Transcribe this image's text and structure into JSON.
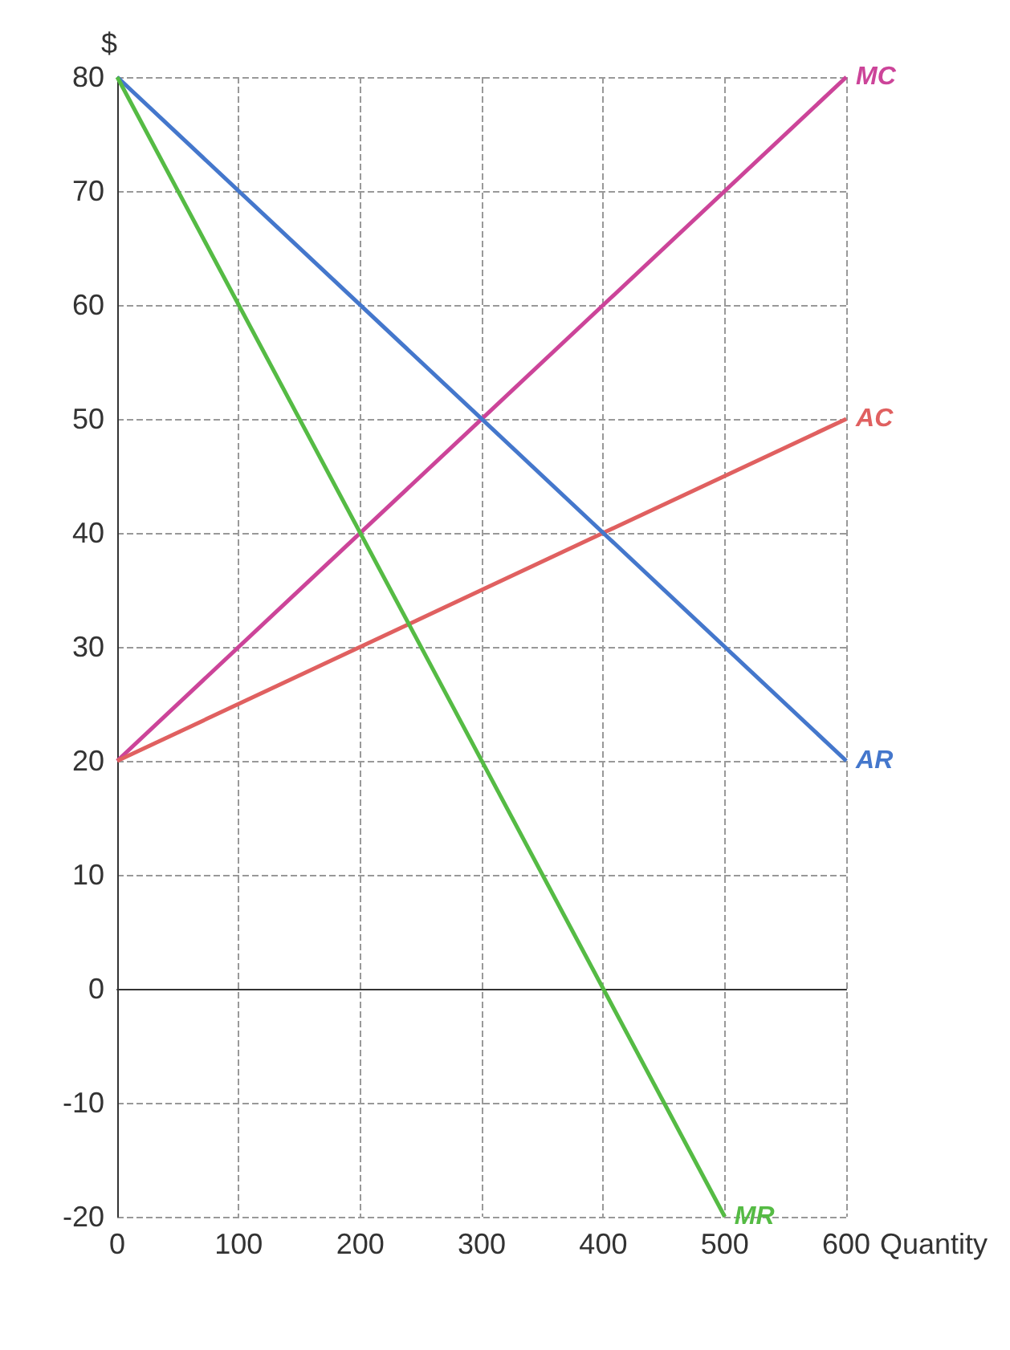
{
  "chart_data": {
    "type": "line",
    "xlabel": "Quantity",
    "ylabel": "$",
    "xlim": [
      0,
      600
    ],
    "xticks": [
      0,
      100,
      200,
      300,
      400,
      500,
      600
    ],
    "ylim": [
      -20,
      80
    ],
    "yticks": [
      -20,
      -10,
      0,
      10,
      20,
      30,
      40,
      50,
      60,
      70,
      80
    ],
    "grid": true,
    "legend": false,
    "marker": "none",
    "line_style": "solid",
    "series": [
      {
        "name": "MC",
        "color": "#cc4499",
        "x": [
          0,
          600
        ],
        "values": [
          20,
          80
        ]
      },
      {
        "name": "AC",
        "color": "#e06060",
        "x": [
          0,
          600
        ],
        "values": [
          20,
          50
        ]
      },
      {
        "name": "AR",
        "color": "#4477cc",
        "x": [
          0,
          600
        ],
        "values": [
          80,
          20
        ]
      },
      {
        "name": "MR",
        "color": "#55bb44",
        "x": [
          0,
          500
        ],
        "values": [
          80,
          -20
        ]
      }
    ]
  }
}
